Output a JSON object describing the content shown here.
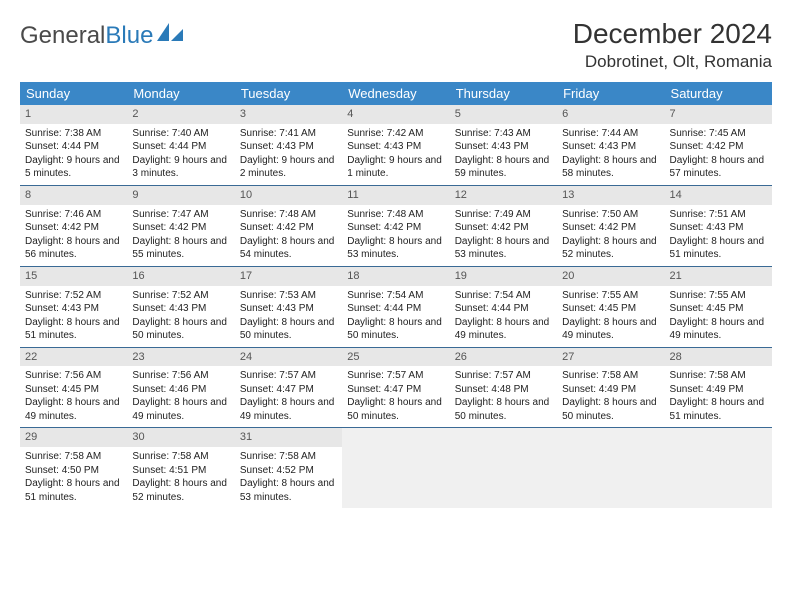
{
  "logo": {
    "text1": "General",
    "text2": "Blue"
  },
  "title": "December 2024",
  "location": "Dobrotinet, Olt, Romania",
  "header_bg": "#3a87c7",
  "daynum_bg": "#e7e7e7",
  "empty_bg": "#f0f0f0",
  "week_border": "#3a6a95",
  "day_names": [
    "Sunday",
    "Monday",
    "Tuesday",
    "Wednesday",
    "Thursday",
    "Friday",
    "Saturday"
  ],
  "weeks": [
    [
      {
        "d": "1",
        "sr": "7:38 AM",
        "ss": "4:44 PM",
        "dl": "9 hours and 5 minutes."
      },
      {
        "d": "2",
        "sr": "7:40 AM",
        "ss": "4:44 PM",
        "dl": "9 hours and 3 minutes."
      },
      {
        "d": "3",
        "sr": "7:41 AM",
        "ss": "4:43 PM",
        "dl": "9 hours and 2 minutes."
      },
      {
        "d": "4",
        "sr": "7:42 AM",
        "ss": "4:43 PM",
        "dl": "9 hours and 1 minute."
      },
      {
        "d": "5",
        "sr": "7:43 AM",
        "ss": "4:43 PM",
        "dl": "8 hours and 59 minutes."
      },
      {
        "d": "6",
        "sr": "7:44 AM",
        "ss": "4:43 PM",
        "dl": "8 hours and 58 minutes."
      },
      {
        "d": "7",
        "sr": "7:45 AM",
        "ss": "4:42 PM",
        "dl": "8 hours and 57 minutes."
      }
    ],
    [
      {
        "d": "8",
        "sr": "7:46 AM",
        "ss": "4:42 PM",
        "dl": "8 hours and 56 minutes."
      },
      {
        "d": "9",
        "sr": "7:47 AM",
        "ss": "4:42 PM",
        "dl": "8 hours and 55 minutes."
      },
      {
        "d": "10",
        "sr": "7:48 AM",
        "ss": "4:42 PM",
        "dl": "8 hours and 54 minutes."
      },
      {
        "d": "11",
        "sr": "7:48 AM",
        "ss": "4:42 PM",
        "dl": "8 hours and 53 minutes."
      },
      {
        "d": "12",
        "sr": "7:49 AM",
        "ss": "4:42 PM",
        "dl": "8 hours and 53 minutes."
      },
      {
        "d": "13",
        "sr": "7:50 AM",
        "ss": "4:42 PM",
        "dl": "8 hours and 52 minutes."
      },
      {
        "d": "14",
        "sr": "7:51 AM",
        "ss": "4:43 PM",
        "dl": "8 hours and 51 minutes."
      }
    ],
    [
      {
        "d": "15",
        "sr": "7:52 AM",
        "ss": "4:43 PM",
        "dl": "8 hours and 51 minutes."
      },
      {
        "d": "16",
        "sr": "7:52 AM",
        "ss": "4:43 PM",
        "dl": "8 hours and 50 minutes."
      },
      {
        "d": "17",
        "sr": "7:53 AM",
        "ss": "4:43 PM",
        "dl": "8 hours and 50 minutes."
      },
      {
        "d": "18",
        "sr": "7:54 AM",
        "ss": "4:44 PM",
        "dl": "8 hours and 50 minutes."
      },
      {
        "d": "19",
        "sr": "7:54 AM",
        "ss": "4:44 PM",
        "dl": "8 hours and 49 minutes."
      },
      {
        "d": "20",
        "sr": "7:55 AM",
        "ss": "4:45 PM",
        "dl": "8 hours and 49 minutes."
      },
      {
        "d": "21",
        "sr": "7:55 AM",
        "ss": "4:45 PM",
        "dl": "8 hours and 49 minutes."
      }
    ],
    [
      {
        "d": "22",
        "sr": "7:56 AM",
        "ss": "4:45 PM",
        "dl": "8 hours and 49 minutes."
      },
      {
        "d": "23",
        "sr": "7:56 AM",
        "ss": "4:46 PM",
        "dl": "8 hours and 49 minutes."
      },
      {
        "d": "24",
        "sr": "7:57 AM",
        "ss": "4:47 PM",
        "dl": "8 hours and 49 minutes."
      },
      {
        "d": "25",
        "sr": "7:57 AM",
        "ss": "4:47 PM",
        "dl": "8 hours and 50 minutes."
      },
      {
        "d": "26",
        "sr": "7:57 AM",
        "ss": "4:48 PM",
        "dl": "8 hours and 50 minutes."
      },
      {
        "d": "27",
        "sr": "7:58 AM",
        "ss": "4:49 PM",
        "dl": "8 hours and 50 minutes."
      },
      {
        "d": "28",
        "sr": "7:58 AM",
        "ss": "4:49 PM",
        "dl": "8 hours and 51 minutes."
      }
    ],
    [
      {
        "d": "29",
        "sr": "7:58 AM",
        "ss": "4:50 PM",
        "dl": "8 hours and 51 minutes."
      },
      {
        "d": "30",
        "sr": "7:58 AM",
        "ss": "4:51 PM",
        "dl": "8 hours and 52 minutes."
      },
      {
        "d": "31",
        "sr": "7:58 AM",
        "ss": "4:52 PM",
        "dl": "8 hours and 53 minutes."
      },
      null,
      null,
      null,
      null
    ]
  ]
}
